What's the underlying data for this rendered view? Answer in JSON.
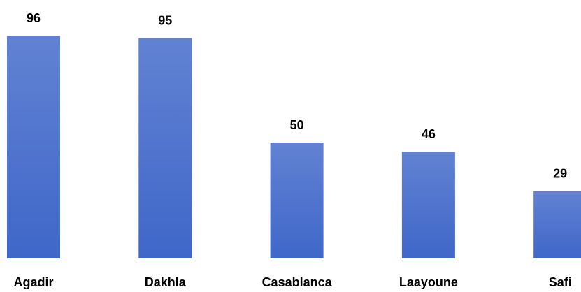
{
  "chart_data": {
    "type": "bar",
    "categories": [
      "Agadir",
      "Dakhla",
      "Casablanca",
      "Laayoune",
      "Safi"
    ],
    "values": [
      96,
      95,
      50,
      46,
      29
    ],
    "color": "#3f67c9"
  }
}
